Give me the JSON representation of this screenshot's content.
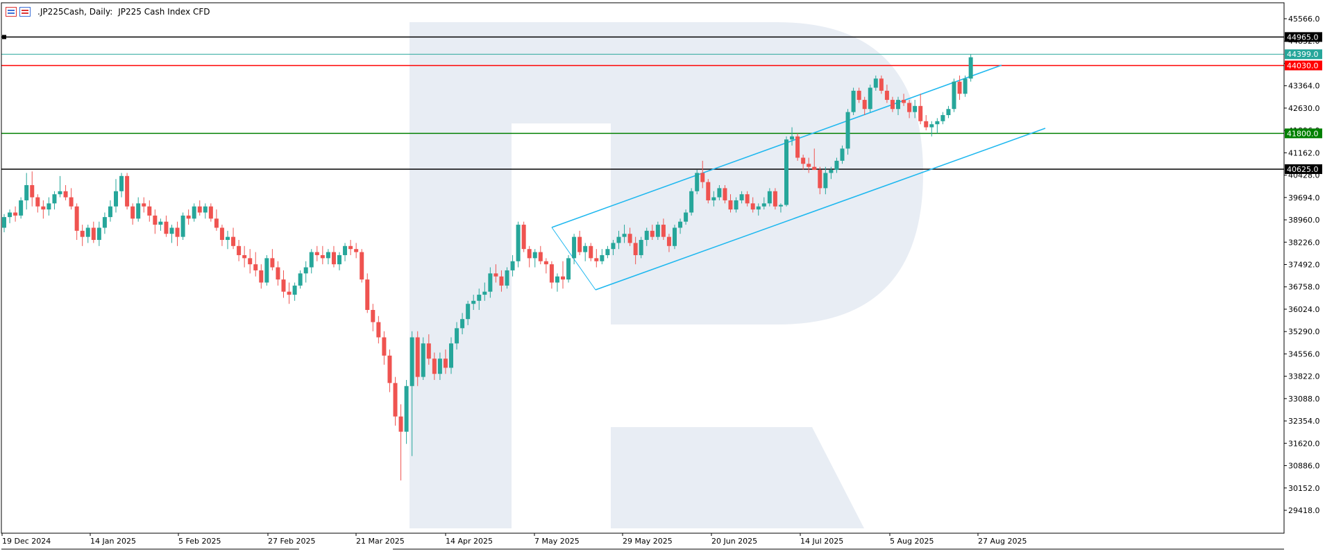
{
  "title": {
    "symbol": ".JP225Cash, Daily:",
    "description": "JP225 Cash Index CFD"
  },
  "icons": [
    "chart-list-icon",
    "chart-bars-icon"
  ],
  "colors": {
    "bull": "#26a69a",
    "bear": "#ef5350",
    "channel": "#1fb8ef",
    "resistance_red": "#ff0000",
    "support_green": "#008000",
    "level_black": "#000000",
    "current_teal": "#26a69a",
    "watermark": "#e8edf4"
  },
  "chart_data": {
    "type": "candlestick",
    "title": "JP225 Cash Index CFD",
    "timeframe": "Daily",
    "y_ticks": [
      "45566.0",
      "44832.0",
      "44098.0",
      "43364.0",
      "42630.0",
      "41896.0",
      "41162.0",
      "40428.0",
      "39694.0",
      "38960.0",
      "38226.0",
      "37492.0",
      "36758.0",
      "36024.0",
      "35290.0",
      "34556.0",
      "33822.0",
      "33088.0",
      "32354.0",
      "31620.0",
      "30886.0",
      "30152.0",
      "29418.0"
    ],
    "x_ticks": [
      "19 Dec 2024",
      "14 Jan 2025",
      "5 Feb 2025",
      "27 Feb 2025",
      "21 Mar 2025",
      "14 Apr 2025",
      "7 May 2025",
      "29 May 2025",
      "20 Jun 2025",
      "14 Jul 2025",
      "5 Aug 2025",
      "27 Aug 2025"
    ],
    "ylim": [
      28900,
      45900
    ],
    "grid": false,
    "levels": [
      {
        "label": "44965.0",
        "value": 44965,
        "color": "#000000"
      },
      {
        "label": "44399.0",
        "value": 44399,
        "color": "#26a69a"
      },
      {
        "label": "44030.0",
        "value": 44030,
        "color": "#ff0000"
      },
      {
        "label": "41800.0",
        "value": 41800,
        "color": "#008000"
      },
      {
        "label": "40625.0",
        "value": 40625,
        "color": "#000000"
      }
    ],
    "channel": {
      "upper": {
        "start": [
          "7 May 2025",
          38880
        ],
        "end": [
          "27 Aug 2025",
          44050
        ]
      },
      "lower": {
        "start": [
          "20 May 2025",
          36680
        ],
        "end": [
          "15 Sep 2025",
          41900
        ]
      }
    },
    "candles": [
      [
        38700,
        39150,
        38550,
        39050
      ],
      [
        39050,
        39300,
        38850,
        39200
      ],
      [
        39200,
        39400,
        38900,
        39100
      ],
      [
        39100,
        39700,
        39000,
        39600
      ],
      [
        39600,
        40500,
        39300,
        40100
      ],
      [
        40100,
        40550,
        39400,
        39700
      ],
      [
        39700,
        39800,
        39200,
        39400
      ],
      [
        39400,
        39600,
        39000,
        39300
      ],
      [
        39300,
        39700,
        39100,
        39500
      ],
      [
        39500,
        39900,
        39300,
        39800
      ],
      [
        39800,
        40400,
        39700,
        39900
      ],
      [
        39900,
        40100,
        39600,
        39700
      ],
      [
        39700,
        40000,
        39300,
        39400
      ],
      [
        39400,
        39500,
        38300,
        38600
      ],
      [
        38600,
        38800,
        38100,
        38400
      ],
      [
        38400,
        38800,
        38200,
        38700
      ],
      [
        38700,
        38900,
        38200,
        38300
      ],
      [
        38300,
        38900,
        38100,
        38700
      ],
      [
        38700,
        39200,
        38500,
        39050
      ],
      [
        39050,
        39600,
        38900,
        39400
      ],
      [
        39400,
        40300,
        39200,
        39900
      ],
      [
        39900,
        40500,
        39700,
        40400
      ],
      [
        40400,
        40500,
        39300,
        39400
      ],
      [
        39400,
        39500,
        38800,
        39000
      ],
      [
        39000,
        39700,
        38900,
        39500
      ],
      [
        39500,
        39700,
        39200,
        39400
      ],
      [
        39400,
        39600,
        38900,
        39100
      ],
      [
        39100,
        39300,
        38500,
        38800
      ],
      [
        38800,
        39000,
        38600,
        38900
      ],
      [
        38900,
        39100,
        38400,
        38500
      ],
      [
        38500,
        38800,
        38200,
        38700
      ],
      [
        38700,
        38900,
        38100,
        38400
      ],
      [
        38400,
        39200,
        38300,
        39100
      ],
      [
        39100,
        39300,
        38800,
        39000
      ],
      [
        39000,
        39500,
        38900,
        39400
      ],
      [
        39400,
        39600,
        39100,
        39200
      ],
      [
        39200,
        39500,
        39000,
        39400
      ],
      [
        39400,
        39500,
        38900,
        39000
      ],
      [
        39000,
        39300,
        38600,
        38700
      ],
      [
        38700,
        38800,
        38100,
        38300
      ],
      [
        38300,
        38600,
        38000,
        38400
      ],
      [
        38400,
        38700,
        38000,
        38100
      ],
      [
        38100,
        38300,
        37600,
        37800
      ],
      [
        37800,
        38100,
        37400,
        37700
      ],
      [
        37700,
        38000,
        37200,
        37500
      ],
      [
        37500,
        37900,
        37100,
        37300
      ],
      [
        37300,
        37500,
        36700,
        36900
      ],
      [
        36900,
        37800,
        36800,
        37700
      ],
      [
        37700,
        38000,
        37300,
        37400
      ],
      [
        37400,
        37600,
        36800,
        37000
      ],
      [
        37000,
        37300,
        36400,
        36600
      ],
      [
        36600,
        36900,
        36200,
        36500
      ],
      [
        36500,
        36900,
        36300,
        36800
      ],
      [
        36800,
        37300,
        36700,
        37200
      ],
      [
        37200,
        37600,
        36900,
        37400
      ],
      [
        37400,
        38000,
        37200,
        37900
      ],
      [
        37900,
        38100,
        37600,
        37800
      ],
      [
        37800,
        38100,
        37500,
        37700
      ],
      [
        37700,
        38000,
        37500,
        37900
      ],
      [
        37900,
        38100,
        37400,
        37500
      ],
      [
        37500,
        37900,
        37300,
        37800
      ],
      [
        37800,
        38200,
        37600,
        38100
      ],
      [
        38100,
        38300,
        37800,
        38000
      ],
      [
        38000,
        38200,
        37700,
        37900
      ],
      [
        37900,
        38000,
        36900,
        37000
      ],
      [
        37000,
        37200,
        35900,
        36000
      ],
      [
        36000,
        36200,
        35300,
        35600
      ],
      [
        35600,
        35800,
        34900,
        35100
      ],
      [
        35100,
        35300,
        34200,
        34500
      ],
      [
        34500,
        34700,
        33300,
        33600
      ],
      [
        33600,
        33800,
        32200,
        32500
      ],
      [
        32500,
        32900,
        30400,
        32000
      ],
      [
        32000,
        33700,
        31600,
        33500
      ],
      [
        33500,
        35300,
        31200,
        35100
      ],
      [
        35100,
        35300,
        33500,
        33800
      ],
      [
        33800,
        35100,
        33700,
        34900
      ],
      [
        34900,
        35200,
        34200,
        34400
      ],
      [
        34400,
        34600,
        33700,
        33900
      ],
      [
        33900,
        34600,
        33700,
        34400
      ],
      [
        34400,
        34700,
        33900,
        34100
      ],
      [
        34100,
        35100,
        33900,
        34900
      ],
      [
        34900,
        35600,
        34700,
        35400
      ],
      [
        35400,
        35900,
        35200,
        35700
      ],
      [
        35700,
        36300,
        35500,
        36200
      ],
      [
        36200,
        36500,
        36000,
        36300
      ],
      [
        36300,
        36700,
        36000,
        36500
      ],
      [
        36500,
        36900,
        36300,
        36600
      ],
      [
        36600,
        37400,
        36400,
        37200
      ],
      [
        37200,
        37500,
        36900,
        37100
      ],
      [
        37100,
        37300,
        36600,
        36800
      ],
      [
        36800,
        37400,
        36700,
        37300
      ],
      [
        37300,
        37800,
        37100,
        37600
      ],
      [
        37600,
        38900,
        37400,
        38800
      ],
      [
        38800,
        38900,
        37900,
        38000
      ],
      [
        38000,
        38100,
        37400,
        37700
      ],
      [
        37700,
        38000,
        37400,
        37900
      ],
      [
        37900,
        38100,
        37500,
        37600
      ],
      [
        37600,
        37700,
        37200,
        37500
      ],
      [
        37500,
        37600,
        36700,
        36900
      ],
      [
        36900,
        37200,
        36600,
        37100
      ],
      [
        37100,
        37600,
        36700,
        37000
      ],
      [
        37000,
        37800,
        36900,
        37700
      ],
      [
        37700,
        38500,
        37500,
        38400
      ],
      [
        38400,
        38600,
        37800,
        37900
      ],
      [
        37900,
        38200,
        37600,
        38100
      ],
      [
        38100,
        38200,
        37600,
        37700
      ],
      [
        37700,
        38000,
        37400,
        37600
      ],
      [
        37600,
        38000,
        37500,
        37800
      ],
      [
        37800,
        38100,
        37700,
        38000
      ],
      [
        38000,
        38300,
        37800,
        38200
      ],
      [
        38200,
        38600,
        38000,
        38400
      ],
      [
        38400,
        38800,
        38200,
        38500
      ],
      [
        38500,
        38700,
        38100,
        38200
      ],
      [
        38200,
        38400,
        37500,
        37800
      ],
      [
        37800,
        38400,
        37700,
        38300
      ],
      [
        38300,
        38700,
        38100,
        38600
      ],
      [
        38600,
        38800,
        38300,
        38400
      ],
      [
        38400,
        38900,
        38300,
        38800
      ],
      [
        38800,
        39000,
        38300,
        38400
      ],
      [
        38400,
        38500,
        37900,
        38100
      ],
      [
        38100,
        38800,
        38000,
        38700
      ],
      [
        38700,
        39000,
        38500,
        38900
      ],
      [
        38900,
        39300,
        38800,
        39200
      ],
      [
        39200,
        40000,
        39100,
        39900
      ],
      [
        39900,
        40600,
        39800,
        40500
      ],
      [
        40500,
        40900,
        40000,
        40200
      ],
      [
        40200,
        40300,
        39500,
        39600
      ],
      [
        39600,
        39900,
        39400,
        39700
      ],
      [
        39700,
        40100,
        39600,
        40000
      ],
      [
        40000,
        40100,
        39500,
        39600
      ],
      [
        39600,
        39800,
        39200,
        39300
      ],
      [
        39300,
        39700,
        39200,
        39600
      ],
      [
        39600,
        39900,
        39500,
        39800
      ],
      [
        39800,
        39900,
        39400,
        39500
      ],
      [
        39500,
        39700,
        39200,
        39300
      ],
      [
        39300,
        39500,
        39100,
        39400
      ],
      [
        39400,
        39700,
        39300,
        39500
      ],
      [
        39500,
        40000,
        39400,
        39900
      ],
      [
        39900,
        40000,
        39300,
        39400
      ],
      [
        39400,
        39500,
        39200,
        39450
      ],
      [
        39450,
        41700,
        39400,
        41600
      ],
      [
        41600,
        42000,
        41400,
        41700
      ],
      [
        41700,
        41800,
        40900,
        41000
      ],
      [
        41000,
        41100,
        40600,
        40800
      ],
      [
        40800,
        41000,
        40500,
        40700
      ],
      [
        40700,
        41300,
        40600,
        40600
      ],
      [
        40600,
        40700,
        39800,
        40000
      ],
      [
        40000,
        40700,
        39800,
        40500
      ],
      [
        40500,
        40700,
        40300,
        40600
      ],
      [
        40600,
        41000,
        40500,
        40900
      ],
      [
        40900,
        41400,
        40800,
        41300
      ],
      [
        41300,
        42600,
        41100,
        42500
      ],
      [
        42500,
        43300,
        42400,
        43200
      ],
      [
        43200,
        43300,
        42800,
        42900
      ],
      [
        42900,
        43000,
        42400,
        42600
      ],
      [
        42600,
        43400,
        42500,
        43300
      ],
      [
        43300,
        43700,
        43200,
        43600
      ],
      [
        43600,
        43700,
        43100,
        43200
      ],
      [
        43200,
        43400,
        42800,
        42900
      ],
      [
        42900,
        43000,
        42500,
        42600
      ],
      [
        42600,
        43000,
        42400,
        42900
      ],
      [
        42900,
        43100,
        42700,
        42800
      ],
      [
        42800,
        42900,
        42300,
        42500
      ],
      [
        42500,
        42900,
        42300,
        42700
      ],
      [
        42700,
        43100,
        42100,
        42200
      ],
      [
        42200,
        42400,
        41900,
        42000
      ],
      [
        42000,
        42200,
        41700,
        42100
      ],
      [
        42100,
        42300,
        41800,
        42200
      ],
      [
        42200,
        42500,
        42100,
        42400
      ],
      [
        42400,
        42700,
        42300,
        42600
      ],
      [
        42600,
        43600,
        42500,
        43500
      ],
      [
        43500,
        43700,
        42900,
        43100
      ],
      [
        43100,
        43700,
        43000,
        43600
      ],
      [
        43600,
        44400,
        43500,
        44300
      ]
    ]
  }
}
